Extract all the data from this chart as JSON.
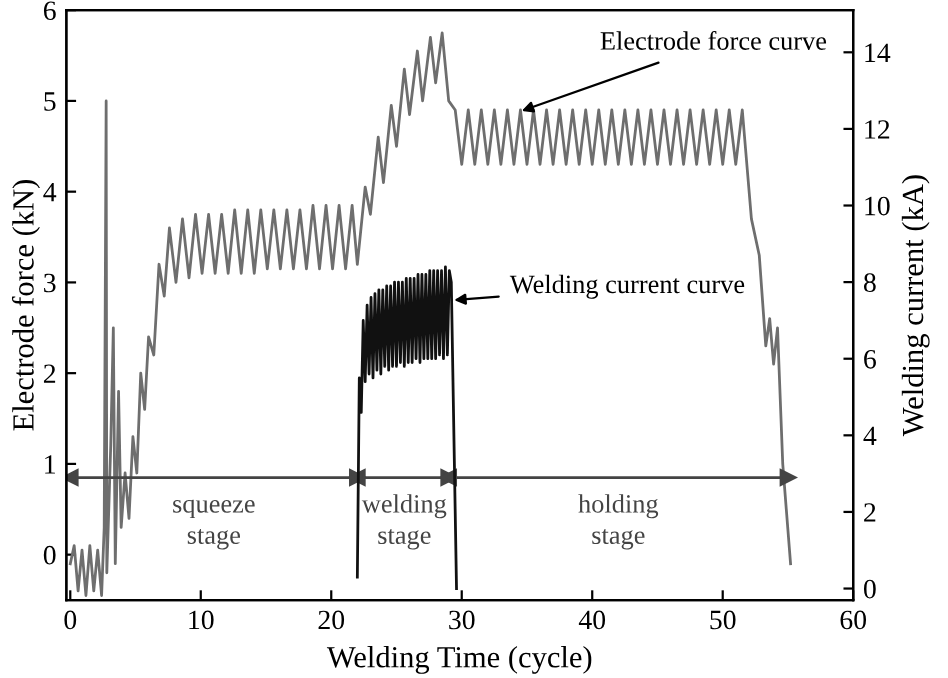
{
  "chart_data": {
    "type": "line",
    "xlabel": "Welding Time (cycle)",
    "ylabel": "Electrode force (kN)",
    "y2label": "Welding current (kA)",
    "xlim": [
      -0.3,
      60
    ],
    "xticks": [
      0,
      10,
      20,
      30,
      40,
      50,
      60
    ],
    "ylim": [
      -0.5,
      6
    ],
    "yticks": [
      0,
      1,
      2,
      3,
      4,
      5,
      6
    ],
    "y2lim": [
      -0.3,
      15.1
    ],
    "y2ticks": [
      0,
      2,
      4,
      6,
      8,
      10,
      12,
      14
    ],
    "grid": false,
    "legend": false,
    "series": [
      {
        "color": "#6e6e6e",
        "x": [
          0,
          0.3,
          0.6,
          0.9,
          1.2,
          1.5,
          1.8,
          2.1,
          2.4,
          2.6,
          2.75,
          2.8,
          3.1,
          3.3,
          3.45,
          3.7,
          3.9,
          4.2,
          4.5,
          4.8,
          5.1,
          5.4,
          5.7,
          6.0,
          6.4,
          6.8,
          7.2,
          7.6,
          8.1,
          8.6,
          9.1,
          9.6,
          10.1,
          10.6,
          11.1,
          11.6,
          12.1,
          12.6,
          13.1,
          13.6,
          14.1,
          14.6,
          15.1,
          15.6,
          16.1,
          16.6,
          17.1,
          17.6,
          18.1,
          18.6,
          19.1,
          19.6,
          20.1,
          20.6,
          21.1,
          21.6,
          22.0,
          22.6,
          23.0,
          23.6,
          24.0,
          24.6,
          25.0,
          25.6,
          26.0,
          26.6,
          27.0,
          27.6,
          28.0,
          28.5,
          29.0,
          29.5,
          30.0,
          30.5,
          31.0,
          31.5,
          32.0,
          32.5,
          33.0,
          33.5,
          34.0,
          34.5,
          35.0,
          35.5,
          36.0,
          36.5,
          37.0,
          37.5,
          38.0,
          38.5,
          39.0,
          39.5,
          40.0,
          40.5,
          41.0,
          41.5,
          42.0,
          42.5,
          43.0,
          43.5,
          44.0,
          44.5,
          45.0,
          45.5,
          46.0,
          46.5,
          47.0,
          47.5,
          48.0,
          48.5,
          49.0,
          49.5,
          50.0,
          50.5,
          51.0,
          51.5,
          52.2,
          52.8,
          53.3,
          53.6,
          53.9,
          54.2,
          54.6,
          55.2
        ],
        "values": [
          -0.1,
          0.1,
          -0.4,
          0.05,
          -0.45,
          0.1,
          -0.4,
          0.05,
          -0.45,
          0.3,
          5.0,
          -0.2,
          1.2,
          2.5,
          -0.1,
          1.8,
          0.3,
          0.9,
          0.4,
          1.3,
          0.9,
          2.0,
          1.6,
          2.4,
          2.2,
          3.2,
          2.85,
          3.6,
          3.0,
          3.7,
          3.05,
          3.75,
          3.1,
          3.75,
          3.1,
          3.75,
          3.1,
          3.8,
          3.1,
          3.8,
          3.1,
          3.8,
          3.15,
          3.8,
          3.15,
          3.8,
          3.15,
          3.8,
          3.15,
          3.85,
          3.15,
          3.85,
          3.15,
          3.85,
          3.15,
          3.85,
          3.2,
          4.05,
          3.75,
          4.6,
          4.1,
          4.95,
          4.5,
          5.35,
          4.85,
          5.55,
          5.0,
          5.7,
          5.2,
          5.75,
          5.0,
          4.9,
          4.3,
          4.9,
          4.3,
          4.9,
          4.3,
          4.9,
          4.3,
          4.9,
          4.3,
          4.9,
          4.3,
          4.9,
          4.3,
          4.9,
          4.3,
          4.9,
          4.3,
          4.9,
          4.3,
          4.9,
          4.3,
          4.9,
          4.3,
          4.9,
          4.3,
          4.9,
          4.3,
          4.9,
          4.3,
          4.9,
          4.3,
          4.9,
          4.3,
          4.9,
          4.3,
          4.9,
          4.3,
          4.9,
          4.3,
          4.9,
          4.3,
          4.9,
          4.3,
          4.9,
          3.7,
          3.3,
          2.3,
          2.6,
          2.1,
          2.5,
          1.0,
          -0.1
        ]
      },
      {
        "color": "#444444",
        "marker": "triangle",
        "x": [
          0,
          22
        ],
        "values": [
          0.85,
          0.85
        ]
      },
      {
        "color": "#444444",
        "marker": "triangle",
        "x": [
          22,
          29
        ],
        "values": [
          0.85,
          0.85
        ]
      },
      {
        "color": "#444444",
        "marker": "triangle",
        "x": [
          29,
          55
        ],
        "values": [
          0.85,
          0.85
        ]
      },
      {
        "color": "#111111",
        "axis": "y2",
        "x": [
          22.0,
          22.15,
          22.3,
          22.45,
          22.6,
          22.75,
          22.9,
          23.05,
          23.2,
          23.35,
          23.5,
          23.65,
          23.8,
          23.95,
          24.1,
          24.25,
          24.4,
          24.55,
          24.7,
          24.85,
          25.0,
          25.15,
          25.3,
          25.45,
          25.6,
          25.75,
          25.9,
          26.05,
          26.2,
          26.35,
          26.5,
          26.65,
          26.8,
          26.95,
          27.1,
          27.25,
          27.4,
          27.55,
          27.7,
          27.85,
          28.0,
          28.15,
          28.3,
          28.45,
          28.6,
          28.75,
          28.9,
          29.05,
          29.2,
          29.6
        ],
        "values": [
          0.3,
          5.5,
          4.6,
          7.0,
          5.4,
          7.4,
          5.6,
          7.6,
          5.5,
          7.7,
          5.7,
          7.8,
          5.6,
          7.8,
          5.8,
          7.9,
          5.7,
          7.9,
          5.8,
          8.0,
          5.8,
          8.0,
          5.9,
          8.0,
          5.8,
          8.1,
          5.9,
          8.1,
          5.9,
          8.1,
          6.0,
          8.2,
          5.9,
          8.2,
          6.0,
          8.2,
          6.0,
          8.3,
          6.0,
          8.3,
          6.0,
          8.3,
          6.1,
          8.3,
          6.0,
          8.4,
          6.1,
          8.3,
          8.0,
          0.0
        ]
      }
    ],
    "annotations": [
      {
        "text": "Electrode force curve",
        "x": 34.2,
        "y": 4.87
      },
      {
        "text": "Welding current curve",
        "x": 29.0,
        "y": 2.8
      },
      {
        "text": "squeeze\nstage",
        "x": 11,
        "y": 0.85
      },
      {
        "text": "welding\nstage",
        "x": 25.6,
        "y": 0.85
      },
      {
        "text": "holding\nstage",
        "x": 42,
        "y": 0.85
      }
    ]
  }
}
